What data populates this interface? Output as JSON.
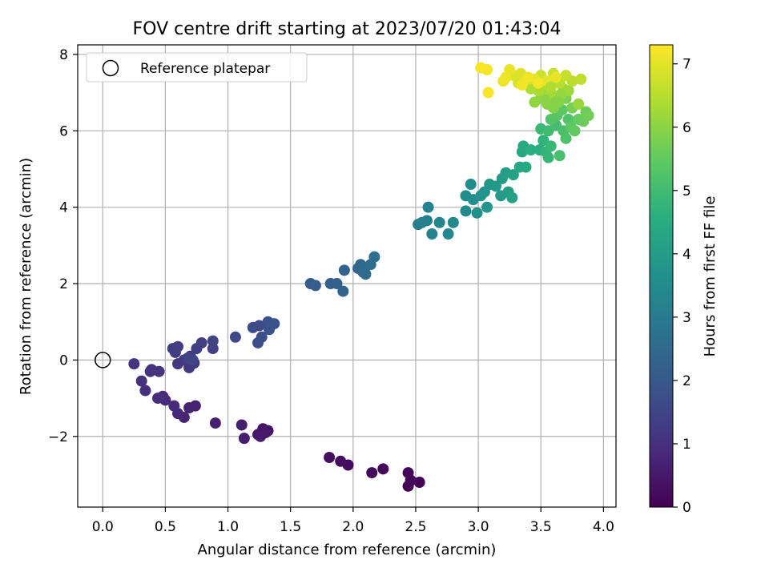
{
  "chart_data": {
    "type": "scatter",
    "title": "FOV centre drift starting at 2023/07/20 01:43:04",
    "xlabel": "Angular distance from reference (arcmin)",
    "ylabel": "Rotation from reference (arcmin)",
    "xlim": [
      -0.2,
      4.1
    ],
    "ylim": [
      -3.85,
      8.25
    ],
    "x_ticks": [
      0.0,
      0.5,
      1.0,
      1.5,
      2.0,
      2.5,
      3.0,
      3.5,
      4.0
    ],
    "y_ticks": [
      -2,
      0,
      2,
      4,
      6,
      8
    ],
    "grid": true,
    "legend": {
      "placement": "upper-left",
      "entries": [
        {
          "label": "Reference platepar",
          "marker": "open-circle"
        }
      ]
    },
    "reference_point": {
      "x": 0.0,
      "y": 0.0
    },
    "colorbar": {
      "label": "Hours from first FF file",
      "colormap": "viridis",
      "range": [
        0,
        7.3
      ],
      "ticks": [
        0,
        1,
        2,
        3,
        4,
        5,
        6,
        7
      ]
    },
    "points": [
      {
        "x": 2.44,
        "y": -3.3,
        "h": 0.02
      },
      {
        "x": 2.53,
        "y": -3.2,
        "h": 0.05
      },
      {
        "x": 2.46,
        "y": -3.15,
        "h": 0.08
      },
      {
        "x": 2.44,
        "y": -2.95,
        "h": 0.1
      },
      {
        "x": 2.24,
        "y": -2.85,
        "h": 0.14
      },
      {
        "x": 2.15,
        "y": -2.95,
        "h": 0.18
      },
      {
        "x": 1.96,
        "y": -2.75,
        "h": 0.22
      },
      {
        "x": 1.9,
        "y": -2.65,
        "h": 0.26
      },
      {
        "x": 1.81,
        "y": -2.55,
        "h": 0.3
      },
      {
        "x": 1.32,
        "y": -1.85,
        "h": 0.38
      },
      {
        "x": 1.28,
        "y": -1.8,
        "h": 0.42
      },
      {
        "x": 1.24,
        "y": -1.95,
        "h": 0.46
      },
      {
        "x": 1.3,
        "y": -1.9,
        "h": 0.5
      },
      {
        "x": 1.26,
        "y": -2.0,
        "h": 0.53
      },
      {
        "x": 1.13,
        "y": -2.05,
        "h": 0.56
      },
      {
        "x": 1.11,
        "y": -1.7,
        "h": 0.6
      },
      {
        "x": 0.9,
        "y": -1.65,
        "h": 0.65
      },
      {
        "x": 0.74,
        "y": -1.2,
        "h": 0.7
      },
      {
        "x": 0.69,
        "y": -1.25,
        "h": 0.72
      },
      {
        "x": 0.65,
        "y": -1.5,
        "h": 0.76
      },
      {
        "x": 0.6,
        "y": -1.4,
        "h": 0.8
      },
      {
        "x": 0.57,
        "y": -1.2,
        "h": 0.84
      },
      {
        "x": 0.5,
        "y": -1.05,
        "h": 0.86
      },
      {
        "x": 0.48,
        "y": -0.95,
        "h": 0.9
      },
      {
        "x": 0.44,
        "y": -1.0,
        "h": 0.93
      },
      {
        "x": 0.34,
        "y": -0.8,
        "h": 0.97
      },
      {
        "x": 0.31,
        "y": -0.55,
        "h": 1.0
      },
      {
        "x": 0.39,
        "y": -0.25,
        "h": 1.03
      },
      {
        "x": 0.45,
        "y": -0.3,
        "h": 1.06
      },
      {
        "x": 0.25,
        "y": -0.1,
        "h": 1.08
      },
      {
        "x": 0.38,
        "y": -0.3,
        "h": 1.1
      },
      {
        "x": 0.6,
        "y": -0.1,
        "h": 1.15
      },
      {
        "x": 0.69,
        "y": -0.2,
        "h": 1.18
      },
      {
        "x": 0.73,
        "y": -0.08,
        "h": 1.2
      },
      {
        "x": 0.65,
        "y": 0.0,
        "h": 1.22
      },
      {
        "x": 0.7,
        "y": 0.1,
        "h": 1.25
      },
      {
        "x": 0.56,
        "y": 0.3,
        "h": 1.28
      },
      {
        "x": 0.58,
        "y": 0.2,
        "h": 1.3
      },
      {
        "x": 0.6,
        "y": 0.35,
        "h": 1.32
      },
      {
        "x": 0.75,
        "y": 0.3,
        "h": 1.35
      },
      {
        "x": 0.79,
        "y": 0.45,
        "h": 1.38
      },
      {
        "x": 0.88,
        "y": 0.3,
        "h": 1.4
      },
      {
        "x": 0.88,
        "y": 0.5,
        "h": 1.45
      },
      {
        "x": 0.68,
        "y": 0.05,
        "h": 1.48
      },
      {
        "x": 0.72,
        "y": 0.0,
        "h": 1.5
      },
      {
        "x": 1.06,
        "y": 0.6,
        "h": 1.58
      },
      {
        "x": 1.2,
        "y": 0.85,
        "h": 1.65
      },
      {
        "x": 1.25,
        "y": 0.9,
        "h": 1.68
      },
      {
        "x": 1.27,
        "y": 0.6,
        "h": 1.72
      },
      {
        "x": 1.24,
        "y": 0.45,
        "h": 1.75
      },
      {
        "x": 1.32,
        "y": 1.0,
        "h": 1.8
      },
      {
        "x": 1.37,
        "y": 0.95,
        "h": 1.83
      },
      {
        "x": 1.33,
        "y": 0.8,
        "h": 1.86
      },
      {
        "x": 1.66,
        "y": 2.0,
        "h": 2.1
      },
      {
        "x": 1.7,
        "y": 1.95,
        "h": 2.15
      },
      {
        "x": 1.82,
        "y": 2.0,
        "h": 2.2
      },
      {
        "x": 1.87,
        "y": 2.0,
        "h": 2.25
      },
      {
        "x": 1.92,
        "y": 1.8,
        "h": 2.3
      },
      {
        "x": 1.93,
        "y": 2.35,
        "h": 2.35
      },
      {
        "x": 2.04,
        "y": 2.4,
        "h": 2.4
      },
      {
        "x": 2.06,
        "y": 2.5,
        "h": 2.45
      },
      {
        "x": 2.08,
        "y": 2.3,
        "h": 2.5
      },
      {
        "x": 2.1,
        "y": 2.25,
        "h": 2.55
      },
      {
        "x": 2.14,
        "y": 2.5,
        "h": 2.6
      },
      {
        "x": 2.17,
        "y": 2.7,
        "h": 2.65
      },
      {
        "x": 2.52,
        "y": 3.55,
        "h": 3.05
      },
      {
        "x": 2.55,
        "y": 3.6,
        "h": 3.1
      },
      {
        "x": 2.59,
        "y": 3.65,
        "h": 3.15
      },
      {
        "x": 2.6,
        "y": 4.0,
        "h": 3.2
      },
      {
        "x": 2.63,
        "y": 3.3,
        "h": 3.25
      },
      {
        "x": 2.69,
        "y": 3.6,
        "h": 3.3
      },
      {
        "x": 2.76,
        "y": 3.3,
        "h": 3.35
      },
      {
        "x": 2.8,
        "y": 3.6,
        "h": 3.4
      },
      {
        "x": 2.9,
        "y": 3.9,
        "h": 3.45
      },
      {
        "x": 2.9,
        "y": 4.3,
        "h": 3.5
      },
      {
        "x": 2.94,
        "y": 4.6,
        "h": 3.55
      },
      {
        "x": 2.96,
        "y": 4.2,
        "h": 3.6
      },
      {
        "x": 2.99,
        "y": 3.85,
        "h": 3.65
      },
      {
        "x": 3.02,
        "y": 4.3,
        "h": 3.7
      },
      {
        "x": 3.05,
        "y": 4.4,
        "h": 3.75
      },
      {
        "x": 3.07,
        "y": 4.0,
        "h": 3.8
      },
      {
        "x": 3.09,
        "y": 4.6,
        "h": 3.85
      },
      {
        "x": 3.14,
        "y": 4.55,
        "h": 3.9
      },
      {
        "x": 3.18,
        "y": 4.3,
        "h": 3.95
      },
      {
        "x": 3.19,
        "y": 4.75,
        "h": 4.0
      },
      {
        "x": 3.22,
        "y": 4.9,
        "h": 4.05
      },
      {
        "x": 3.24,
        "y": 4.4,
        "h": 4.1
      },
      {
        "x": 3.28,
        "y": 4.85,
        "h": 4.15
      },
      {
        "x": 3.27,
        "y": 4.25,
        "h": 4.2
      },
      {
        "x": 3.33,
        "y": 5.05,
        "h": 4.3
      },
      {
        "x": 3.35,
        "y": 5.45,
        "h": 4.35
      },
      {
        "x": 3.36,
        "y": 5.6,
        "h": 4.4
      },
      {
        "x": 3.38,
        "y": 5.05,
        "h": 4.45
      },
      {
        "x": 3.42,
        "y": 5.5,
        "h": 4.55
      },
      {
        "x": 3.49,
        "y": 5.5,
        "h": 4.6
      },
      {
        "x": 3.52,
        "y": 5.75,
        "h": 4.7
      },
      {
        "x": 3.54,
        "y": 5.45,
        "h": 4.75
      },
      {
        "x": 3.56,
        "y": 5.3,
        "h": 4.8
      },
      {
        "x": 3.58,
        "y": 5.6,
        "h": 4.85
      },
      {
        "x": 3.5,
        "y": 6.05,
        "h": 4.9
      },
      {
        "x": 3.56,
        "y": 6.0,
        "h": 5.0
      },
      {
        "x": 3.62,
        "y": 6.15,
        "h": 5.05
      },
      {
        "x": 3.65,
        "y": 5.35,
        "h": 5.1
      },
      {
        "x": 3.68,
        "y": 6.0,
        "h": 5.15
      },
      {
        "x": 3.7,
        "y": 5.8,
        "h": 5.2
      },
      {
        "x": 3.72,
        "y": 6.3,
        "h": 5.25
      },
      {
        "x": 3.58,
        "y": 6.3,
        "h": 5.3
      },
      {
        "x": 3.63,
        "y": 6.4,
        "h": 5.35
      },
      {
        "x": 3.67,
        "y": 6.55,
        "h": 5.4
      },
      {
        "x": 3.74,
        "y": 6.1,
        "h": 5.45
      },
      {
        "x": 3.77,
        "y": 6.0,
        "h": 5.5
      },
      {
        "x": 3.8,
        "y": 6.3,
        "h": 5.55
      },
      {
        "x": 3.84,
        "y": 6.25,
        "h": 5.6
      },
      {
        "x": 3.86,
        "y": 6.5,
        "h": 5.65
      },
      {
        "x": 3.88,
        "y": 6.4,
        "h": 5.7
      },
      {
        "x": 3.75,
        "y": 6.6,
        "h": 5.75
      },
      {
        "x": 3.7,
        "y": 6.85,
        "h": 5.8
      },
      {
        "x": 3.62,
        "y": 6.85,
        "h": 5.85
      },
      {
        "x": 3.6,
        "y": 6.6,
        "h": 5.9
      },
      {
        "x": 3.55,
        "y": 6.7,
        "h": 5.95
      },
      {
        "x": 3.5,
        "y": 6.85,
        "h": 6.0
      },
      {
        "x": 3.45,
        "y": 6.75,
        "h": 6.05
      },
      {
        "x": 3.52,
        "y": 6.95,
        "h": 6.1
      },
      {
        "x": 3.8,
        "y": 6.7,
        "h": 6.15
      },
      {
        "x": 3.72,
        "y": 7.05,
        "h": 6.2
      },
      {
        "x": 3.68,
        "y": 7.1,
        "h": 6.25
      },
      {
        "x": 3.58,
        "y": 7.0,
        "h": 6.3
      },
      {
        "x": 3.48,
        "y": 7.05,
        "h": 6.35
      },
      {
        "x": 3.42,
        "y": 7.1,
        "h": 6.4
      },
      {
        "x": 3.55,
        "y": 7.2,
        "h": 6.45
      },
      {
        "x": 3.65,
        "y": 7.25,
        "h": 6.5
      },
      {
        "x": 3.75,
        "y": 7.3,
        "h": 6.55
      },
      {
        "x": 3.82,
        "y": 7.35,
        "h": 6.6
      },
      {
        "x": 3.7,
        "y": 7.45,
        "h": 6.65
      },
      {
        "x": 3.6,
        "y": 7.5,
        "h": 6.7
      },
      {
        "x": 3.5,
        "y": 7.45,
        "h": 6.75
      },
      {
        "x": 3.4,
        "y": 7.35,
        "h": 6.8
      },
      {
        "x": 3.32,
        "y": 7.25,
        "h": 6.85
      },
      {
        "x": 3.28,
        "y": 7.45,
        "h": 6.9
      },
      {
        "x": 3.34,
        "y": 7.5,
        "h": 6.95
      },
      {
        "x": 3.45,
        "y": 7.35,
        "h": 7.0
      },
      {
        "x": 3.55,
        "y": 7.3,
        "h": 7.02
      },
      {
        "x": 3.62,
        "y": 7.4,
        "h": 7.05
      },
      {
        "x": 3.25,
        "y": 7.6,
        "h": 7.08
      },
      {
        "x": 3.22,
        "y": 7.4,
        "h": 7.1
      },
      {
        "x": 3.2,
        "y": 7.3,
        "h": 7.12
      },
      {
        "x": 3.35,
        "y": 7.2,
        "h": 7.15
      },
      {
        "x": 3.07,
        "y": 7.6,
        "h": 7.2
      },
      {
        "x": 3.02,
        "y": 7.65,
        "h": 7.22
      },
      {
        "x": 3.08,
        "y": 7.0,
        "h": 7.25
      },
      {
        "x": 3.48,
        "y": 7.25,
        "h": 7.18
      },
      {
        "x": 3.4,
        "y": 7.4,
        "h": 7.16
      },
      {
        "x": 3.58,
        "y": 7.15,
        "h": 6.4
      },
      {
        "x": 3.66,
        "y": 6.95,
        "h": 6.1
      },
      {
        "x": 3.54,
        "y": 6.8,
        "h": 6.0
      },
      {
        "x": 3.64,
        "y": 6.75,
        "h": 5.95
      }
    ]
  }
}
